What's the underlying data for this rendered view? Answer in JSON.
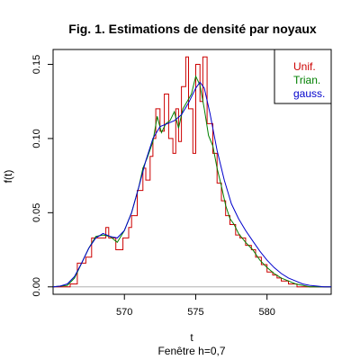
{
  "chart_data": {
    "type": "line",
    "title": "Fig. 1. Estimations de densité par noyaux",
    "xlabel": "t",
    "xlabel_sub": "Fenêtre h=0,7",
    "ylabel": "f(t)",
    "xlim": [
      565.0,
      584.5
    ],
    "ylim": [
      -0.005,
      0.16
    ],
    "x_ticks": [
      570,
      575,
      580
    ],
    "x_tick_labels": [
      "570",
      "575",
      "580"
    ],
    "y_ticks": [
      0.0,
      0.05,
      0.1,
      0.15
    ],
    "y_tick_labels": [
      "0.00",
      "0.05",
      "0.10",
      "0.15"
    ],
    "baseline": 0,
    "grid": false,
    "legend_position": "top-right",
    "series": [
      {
        "name": "Unif.",
        "color": "#cc0000",
        "step": true,
        "x": [
          565.0,
          566.2,
          566.7,
          567.3,
          567.7,
          568.0,
          568.7,
          568.9,
          569.4,
          569.9,
          570.3,
          570.5,
          570.9,
          571.3,
          571.5,
          571.8,
          572.0,
          572.2,
          572.5,
          572.8,
          573.1,
          573.4,
          573.6,
          573.8,
          574.0,
          574.3,
          574.5,
          574.8,
          575.0,
          575.3,
          575.5,
          575.8,
          576.2,
          576.5,
          576.8,
          577.1,
          577.4,
          577.8,
          578.1,
          578.5,
          578.9,
          579.2,
          579.6,
          580.0,
          580.4,
          580.7,
          581.0,
          581.5,
          582.1,
          582.7,
          583.4,
          584.5
        ],
        "y": [
          0.0,
          0.002,
          0.016,
          0.02,
          0.033,
          0.033,
          0.04,
          0.033,
          0.025,
          0.033,
          0.04,
          0.048,
          0.065,
          0.08,
          0.072,
          0.088,
          0.1,
          0.12,
          0.105,
          0.13,
          0.1,
          0.09,
          0.12,
          0.098,
          0.135,
          0.155,
          0.12,
          0.09,
          0.15,
          0.125,
          0.155,
          0.11,
          0.09,
          0.07,
          0.058,
          0.048,
          0.042,
          0.035,
          0.033,
          0.028,
          0.025,
          0.02,
          0.015,
          0.01,
          0.008,
          0.006,
          0.004,
          0.002,
          0.0,
          0.0,
          0.0,
          0.0
        ]
      },
      {
        "name": "Trian.",
        "color": "#008000",
        "step": false,
        "x": [
          565.0,
          566.0,
          566.5,
          567.0,
          567.5,
          568.0,
          568.5,
          569.0,
          569.5,
          570.0,
          570.5,
          571.0,
          571.3,
          571.6,
          572.0,
          572.3,
          572.6,
          572.9,
          573.2,
          573.5,
          573.8,
          574.1,
          574.4,
          574.7,
          575.0,
          575.3,
          575.6,
          575.9,
          576.2,
          576.5,
          576.8,
          577.1,
          577.4,
          577.7,
          578.0,
          578.5,
          579.0,
          579.5,
          580.0,
          580.5,
          581.0,
          581.5,
          582.0,
          582.5,
          583.0,
          583.5,
          584.0,
          584.5
        ],
        "y": [
          0.0,
          0.001,
          0.006,
          0.016,
          0.026,
          0.034,
          0.035,
          0.034,
          0.03,
          0.038,
          0.05,
          0.067,
          0.08,
          0.087,
          0.098,
          0.115,
          0.104,
          0.11,
          0.112,
          0.118,
          0.107,
          0.12,
          0.125,
          0.13,
          0.142,
          0.136,
          0.12,
          0.102,
          0.095,
          0.08,
          0.068,
          0.055,
          0.046,
          0.042,
          0.036,
          0.03,
          0.025,
          0.018,
          0.013,
          0.009,
          0.006,
          0.004,
          0.002,
          0.001,
          0.0,
          0.0,
          0.0,
          0.0
        ]
      },
      {
        "name": "gauss.",
        "color": "#0000cc",
        "step": false,
        "x": [
          565.0,
          565.5,
          566.0,
          566.5,
          567.0,
          567.5,
          568.0,
          568.5,
          569.0,
          569.5,
          570.0,
          570.5,
          571.0,
          571.5,
          572.0,
          572.5,
          573.0,
          573.5,
          574.0,
          574.5,
          575.0,
          575.3,
          575.6,
          576.0,
          576.5,
          577.0,
          577.5,
          578.0,
          578.5,
          579.0,
          579.5,
          580.0,
          580.5,
          581.0,
          581.5,
          582.0,
          582.5,
          583.0,
          583.5,
          584.0,
          584.5
        ],
        "y": [
          0.0,
          0.0005,
          0.002,
          0.007,
          0.016,
          0.026,
          0.033,
          0.036,
          0.034,
          0.033,
          0.038,
          0.05,
          0.067,
          0.085,
          0.1,
          0.108,
          0.11,
          0.112,
          0.116,
          0.124,
          0.134,
          0.138,
          0.134,
          0.117,
          0.092,
          0.072,
          0.056,
          0.046,
          0.038,
          0.031,
          0.024,
          0.018,
          0.013,
          0.009,
          0.006,
          0.004,
          0.002,
          0.001,
          0.0005,
          0.0,
          0.0
        ]
      }
    ]
  }
}
